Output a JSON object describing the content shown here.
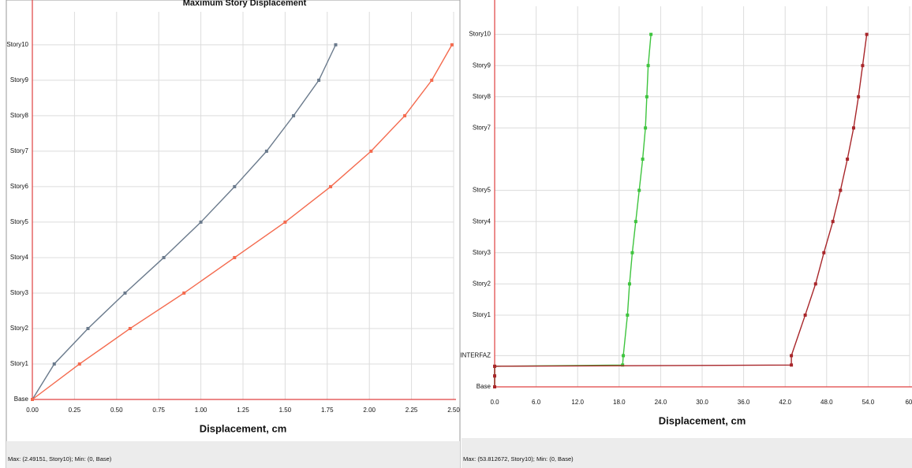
{
  "chart_data": [
    {
      "type": "line",
      "title": "Maximum Story Displacement",
      "x_label": "Displacement, cm",
      "footer": "Max: (2.49151, Story10);  Min: (0, Base)",
      "xlim": [
        0,
        2.5
      ],
      "ylim": [
        0,
        10.93
      ],
      "grid": true,
      "xticks": [
        {
          "value": 0,
          "label": "0.00"
        },
        {
          "value": 0.25,
          "label": "0.25"
        },
        {
          "value": 0.5,
          "label": "0.50"
        },
        {
          "value": 0.75,
          "label": "0.75"
        },
        {
          "value": 1,
          "label": "1.00"
        },
        {
          "value": 1.25,
          "label": "1.25"
        },
        {
          "value": 1.5,
          "label": "1.50"
        },
        {
          "value": 1.75,
          "label": "1.75"
        },
        {
          "value": 2,
          "label": "2.00"
        },
        {
          "value": 2.25,
          "label": "2.25"
        },
        {
          "value": 2.5,
          "label": "2.50"
        }
      ],
      "yticks": [
        {
          "value": 0,
          "label": "Base"
        },
        {
          "value": 1,
          "label": "Story1"
        },
        {
          "value": 2,
          "label": "Story2"
        },
        {
          "value": 3,
          "label": "Story3"
        },
        {
          "value": 4,
          "label": "Story4"
        },
        {
          "value": 5,
          "label": "Story5"
        },
        {
          "value": 6,
          "label": "Story6"
        },
        {
          "value": 7,
          "label": "Story7"
        },
        {
          "value": 8,
          "label": "Story8"
        },
        {
          "value": 9,
          "label": "Story9"
        },
        {
          "value": 10,
          "label": "Story10"
        }
      ],
      "series": [
        {
          "color": "#6a7a8c",
          "x": [
            0,
            0.13,
            0.33,
            0.55,
            0.78,
            1.0,
            1.2,
            1.39,
            1.55,
            1.7,
            1.8
          ],
          "y": [
            0,
            1,
            2,
            3,
            4,
            5,
            6,
            7,
            8,
            9,
            10
          ]
        },
        {
          "color": "#f46a4e",
          "x": [
            0,
            0.28,
            0.58,
            0.9,
            1.2,
            1.5,
            1.77,
            2.01,
            2.21,
            2.37,
            2.49
          ],
          "y": [
            0,
            1,
            2,
            3,
            4,
            5,
            6,
            7,
            8,
            9,
            10
          ]
        }
      ]
    },
    {
      "type": "line",
      "x_label": "Displacement, cm",
      "footer": "Max: (53.812672, Story10);  Min: (0, Base)",
      "xlim": [
        0,
        60
      ],
      "ylim": [
        0,
        12.2
      ],
      "grid": true,
      "xticks": [
        {
          "value": 0,
          "label": "0.0"
        },
        {
          "value": 6,
          "label": "6.0"
        },
        {
          "value": 12,
          "label": "12.0"
        },
        {
          "value": 18,
          "label": "18.0"
        },
        {
          "value": 24,
          "label": "24.0"
        },
        {
          "value": 30,
          "label": "30.0"
        },
        {
          "value": 36,
          "label": "36.0"
        },
        {
          "value": 42,
          "label": "42.0"
        },
        {
          "value": 48,
          "label": "48.0"
        },
        {
          "value": 54,
          "label": "54.0"
        },
        {
          "value": 60,
          "label": "60."
        }
      ],
      "yticks": [
        {
          "value": 0,
          "label": "Base"
        },
        {
          "value": 1,
          "label": "INTERFAZ"
        },
        {
          "value": 2.3,
          "label": "Story1"
        },
        {
          "value": 3.3,
          "label": "Story2"
        },
        {
          "value": 4.3,
          "label": "Story3"
        },
        {
          "value": 5.3,
          "label": "Story4"
        },
        {
          "value": 6.3,
          "label": "Story5"
        },
        {
          "value": 8.3,
          "label": "Story7"
        },
        {
          "value": 9.3,
          "label": "Story8"
        },
        {
          "value": 10.3,
          "label": "Story9"
        },
        {
          "value": 11.3,
          "label": "Story10"
        }
      ],
      "series": [
        {
          "color": "#3ec43e",
          "x": [
            0,
            0,
            0,
            18.5,
            18.6,
            19.2,
            19.5,
            19.9,
            20.4,
            20.9,
            21.4,
            21.8,
            22.0,
            22.2,
            22.6
          ],
          "y": [
            0,
            0.35,
            0.66,
            0.7,
            1,
            2.3,
            3.3,
            4.3,
            5.3,
            6.3,
            7.3,
            8.3,
            9.3,
            10.3,
            11.3
          ]
        },
        {
          "color": "#a8262a",
          "x": [
            0,
            0,
            0,
            42.9,
            42.9,
            44.9,
            46.4,
            47.6,
            48.9,
            50.0,
            51.0,
            51.9,
            52.6,
            53.2,
            53.8
          ],
          "y": [
            0,
            0.35,
            0.66,
            0.7,
            1,
            2.3,
            3.3,
            4.3,
            5.3,
            6.3,
            7.3,
            8.3,
            9.3,
            10.3,
            11.3
          ]
        }
      ]
    }
  ]
}
